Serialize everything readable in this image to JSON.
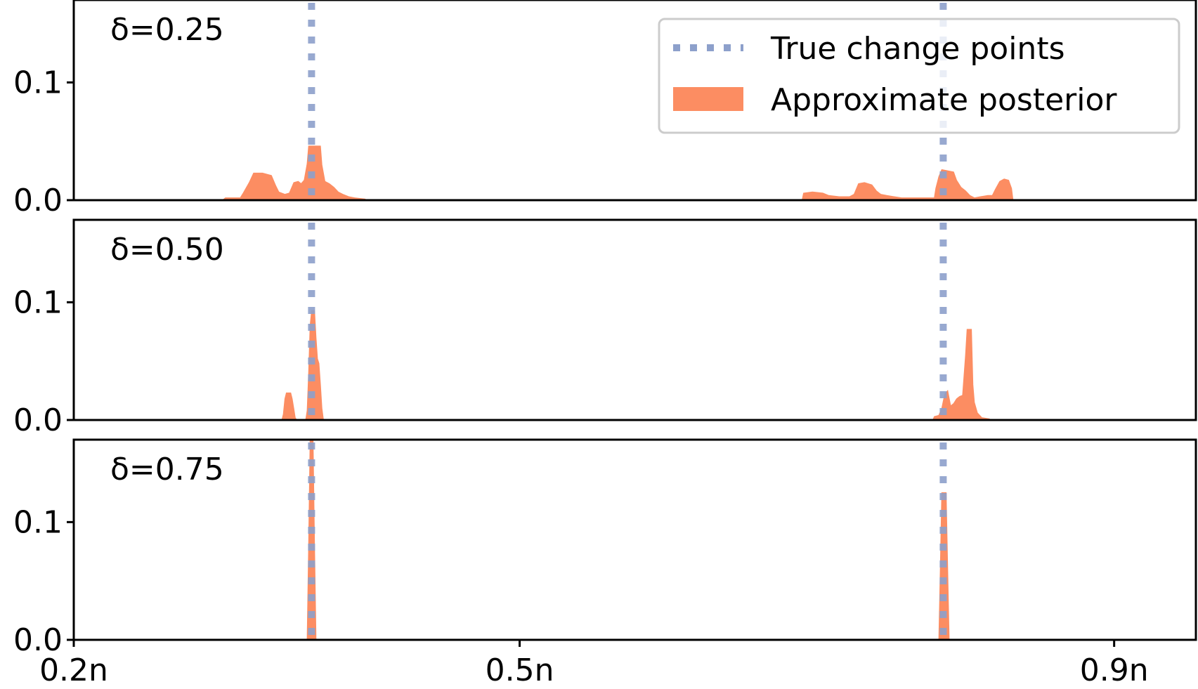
{
  "chart_data": {
    "type": "area",
    "x_ticks": [
      {
        "value": 0.2,
        "label": "0.2n"
      },
      {
        "value": 0.5,
        "label": "0.5n"
      },
      {
        "value": 0.9,
        "label": "0.9n"
      }
    ],
    "xlim": [
      0.2,
      0.955
    ],
    "ylim": [
      0,
      0.17
    ],
    "y_ticks": [
      {
        "value": 0.0,
        "label": "0.0"
      },
      {
        "value": 0.1,
        "label": "0.1"
      }
    ],
    "true_change_points": [
      0.36,
      0.785
    ],
    "legend": {
      "placement": "top-right",
      "entries": [
        {
          "label": "True change points",
          "style": "dotted-line"
        },
        {
          "label": "Approximate posterior",
          "style": "filled-patch"
        }
      ]
    },
    "colors": {
      "posterior": "#fc8d62",
      "change_points": "#8da0cb",
      "axes": "#000000"
    },
    "panels": [
      {
        "label": "δ=0.25",
        "posterior": [
          [
            0.3,
            0.0
          ],
          [
            0.302,
            0.002
          ],
          [
            0.312,
            0.002
          ],
          [
            0.314,
            0.006
          ],
          [
            0.318,
            0.015
          ],
          [
            0.321,
            0.023
          ],
          [
            0.327,
            0.023
          ],
          [
            0.333,
            0.021
          ],
          [
            0.336,
            0.012
          ],
          [
            0.338,
            0.007
          ],
          [
            0.342,
            0.005
          ],
          [
            0.345,
            0.006
          ],
          [
            0.348,
            0.015
          ],
          [
            0.351,
            0.016
          ],
          [
            0.353,
            0.014
          ],
          [
            0.355,
            0.017
          ],
          [
            0.357,
            0.031
          ],
          [
            0.358,
            0.046
          ],
          [
            0.366,
            0.046
          ],
          [
            0.367,
            0.03
          ],
          [
            0.369,
            0.016
          ],
          [
            0.372,
            0.014
          ],
          [
            0.375,
            0.011
          ],
          [
            0.378,
            0.007
          ],
          [
            0.381,
            0.005
          ],
          [
            0.385,
            0.003
          ],
          [
            0.389,
            0.002
          ],
          [
            0.396,
            0.001
          ],
          [
            0.397,
            0.0
          ],
          [
            0.69,
            0.0
          ],
          [
            0.691,
            0.006
          ],
          [
            0.697,
            0.007
          ],
          [
            0.704,
            0.006
          ],
          [
            0.708,
            0.004
          ],
          [
            0.715,
            0.003
          ],
          [
            0.722,
            0.003
          ],
          [
            0.725,
            0.005
          ],
          [
            0.728,
            0.014
          ],
          [
            0.732,
            0.015
          ],
          [
            0.737,
            0.013
          ],
          [
            0.74,
            0.008
          ],
          [
            0.743,
            0.005
          ],
          [
            0.747,
            0.004
          ],
          [
            0.752,
            0.003
          ],
          [
            0.757,
            0.002
          ],
          [
            0.766,
            0.002
          ],
          [
            0.774,
            0.002
          ],
          [
            0.779,
            0.002
          ],
          [
            0.78,
            0.01
          ],
          [
            0.782,
            0.02
          ],
          [
            0.784,
            0.026
          ],
          [
            0.792,
            0.024
          ],
          [
            0.794,
            0.017
          ],
          [
            0.797,
            0.011
          ],
          [
            0.8,
            0.008
          ],
          [
            0.803,
            0.004
          ],
          [
            0.806,
            0.002
          ],
          [
            0.81,
            0.003
          ],
          [
            0.815,
            0.004
          ],
          [
            0.818,
            0.004
          ],
          [
            0.82,
            0.009
          ],
          [
            0.823,
            0.016
          ],
          [
            0.826,
            0.018
          ],
          [
            0.829,
            0.017
          ],
          [
            0.831,
            0.01
          ],
          [
            0.832,
            0.0
          ]
        ]
      },
      {
        "label": "δ=0.50",
        "posterior": [
          [
            0.34,
            0.0
          ],
          [
            0.341,
            0.005
          ],
          [
            0.342,
            0.018
          ],
          [
            0.343,
            0.023
          ],
          [
            0.346,
            0.023
          ],
          [
            0.347,
            0.018
          ],
          [
            0.348,
            0.01
          ],
          [
            0.349,
            0.002
          ],
          [
            0.35,
            0.0
          ],
          [
            0.356,
            0.0
          ],
          [
            0.357,
            0.008
          ],
          [
            0.358,
            0.04
          ],
          [
            0.359,
            0.08
          ],
          [
            0.36,
            0.093
          ],
          [
            0.362,
            0.093
          ],
          [
            0.363,
            0.07
          ],
          [
            0.364,
            0.052
          ],
          [
            0.365,
            0.048
          ],
          [
            0.366,
            0.03
          ],
          [
            0.367,
            0.01
          ],
          [
            0.368,
            0.0
          ],
          [
            0.778,
            0.0
          ],
          [
            0.779,
            0.003
          ],
          [
            0.782,
            0.004
          ],
          [
            0.784,
            0.01
          ],
          [
            0.786,
            0.022
          ],
          [
            0.788,
            0.025
          ],
          [
            0.79,
            0.012
          ],
          [
            0.792,
            0.014
          ],
          [
            0.794,
            0.018
          ],
          [
            0.796,
            0.02
          ],
          [
            0.798,
            0.021
          ],
          [
            0.8,
            0.055
          ],
          [
            0.801,
            0.077
          ],
          [
            0.804,
            0.077
          ],
          [
            0.805,
            0.03
          ],
          [
            0.806,
            0.015
          ],
          [
            0.808,
            0.006
          ],
          [
            0.811,
            0.002
          ],
          [
            0.816,
            0.001
          ],
          [
            0.817,
            0.0
          ]
        ]
      },
      {
        "label": "δ=0.75",
        "posterior": [
          [
            0.357,
            0.0
          ],
          [
            0.358,
            0.08
          ],
          [
            0.359,
            0.17
          ],
          [
            0.361,
            0.17
          ],
          [
            0.362,
            0.08
          ],
          [
            0.363,
            0.0
          ],
          [
            0.782,
            0.0
          ],
          [
            0.783,
            0.06
          ],
          [
            0.784,
            0.125
          ],
          [
            0.787,
            0.125
          ],
          [
            0.788,
            0.06
          ],
          [
            0.789,
            0.0
          ]
        ]
      }
    ]
  }
}
